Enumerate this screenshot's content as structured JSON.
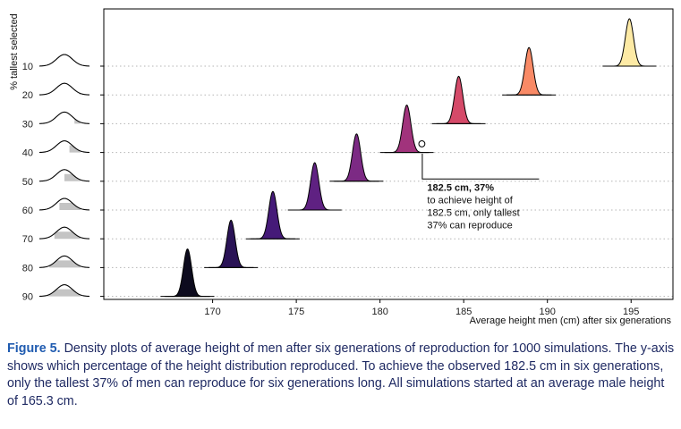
{
  "chart_data": {
    "type": "density",
    "xlabel": "Average height men (cm) after six generations",
    "ylabel": "% tallest selected",
    "xlim": [
      163.5,
      197.5
    ],
    "x_ticks": [
      170,
      175,
      180,
      185,
      190,
      195
    ],
    "y_ticks": [
      10,
      20,
      30,
      40,
      50,
      60,
      70,
      80,
      90
    ],
    "grid": "horizontal dotted",
    "series": [
      {
        "selected_pct": 90,
        "mean": 168.5,
        "color": "#0d0b1e"
      },
      {
        "selected_pct": 80,
        "mean": 171.1,
        "color": "#2a1356"
      },
      {
        "selected_pct": 70,
        "mean": 173.6,
        "color": "#451a78"
      },
      {
        "selected_pct": 60,
        "mean": 176.1,
        "color": "#5f2182"
      },
      {
        "selected_pct": 50,
        "mean": 178.6,
        "color": "#7c2a84"
      },
      {
        "selected_pct": 40,
        "mean": 181.6,
        "color": "#a1337c"
      },
      {
        "selected_pct": 30,
        "mean": 184.7,
        "color": "#d54a69"
      },
      {
        "selected_pct": 20,
        "mean": 188.9,
        "color": "#f98a66"
      },
      {
        "selected_pct": 10,
        "mean": 194.9,
        "color": "#fdeaa5"
      }
    ],
    "annotation": {
      "x": 182.5,
      "y_pct": 37,
      "title": "182.5 cm, 37%",
      "lines": [
        "to achieve height of",
        "182.5 cm, only tallest",
        "37% can reproduce"
      ]
    }
  },
  "caption": {
    "label": "Figure 5.",
    "text": " Density plots of average height of men after six generations of reproduction for 1000 simulations. The y-axis shows which percentage of the height distribution reproduced. To achieve the observed 182.5 cm in six generations, only the tallest 37% of men can reproduce for six generations long. All simulations started at an average male height of 165.3 cm."
  }
}
